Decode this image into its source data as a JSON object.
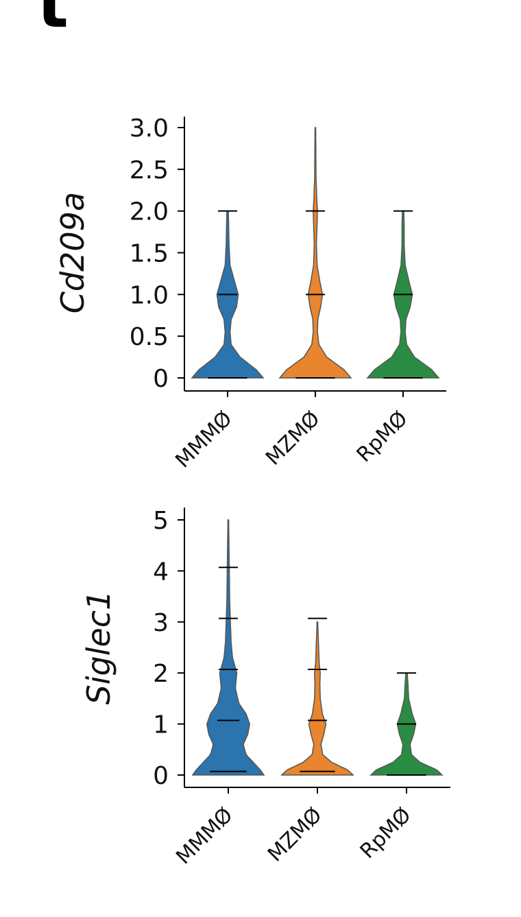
{
  "panel_letter": "t",
  "chart_data": [
    {
      "type": "violin",
      "ylabel": "Cd209a",
      "ylim": [
        0,
        3.0
      ],
      "yticks": [
        0,
        0.5,
        1.0,
        1.5,
        2.0,
        2.5,
        3.0
      ],
      "ytick_labels": [
        "0",
        "0.5",
        "1.0",
        "1.5",
        "2.0",
        "2.5",
        "3.0"
      ],
      "categories": [
        "MMMØ",
        "MZMØ",
        "RpMØ"
      ],
      "series": [
        {
          "name": "MMMØ",
          "color": "#2b74ad",
          "max": 2.0,
          "density": [
            [
              0,
              1.0
            ],
            [
              0.1,
              0.8
            ],
            [
              0.25,
              0.35
            ],
            [
              0.4,
              0.1
            ],
            [
              0.55,
              0.07
            ],
            [
              0.7,
              0.1
            ],
            [
              0.85,
              0.25
            ],
            [
              1.0,
              0.3
            ],
            [
              1.15,
              0.2
            ],
            [
              1.35,
              0.07
            ],
            [
              1.6,
              0.04
            ],
            [
              1.85,
              0.03
            ],
            [
              2.0,
              0.02
            ]
          ],
          "observed_levels": [
            0,
            1.0,
            2.0
          ]
        },
        {
          "name": "MZMØ",
          "color": "#e8852e",
          "max": 3.0,
          "density": [
            [
              0,
              1.0
            ],
            [
              0.1,
              0.8
            ],
            [
              0.25,
              0.32
            ],
            [
              0.4,
              0.1
            ],
            [
              0.55,
              0.06
            ],
            [
              0.7,
              0.07
            ],
            [
              0.85,
              0.15
            ],
            [
              1.0,
              0.2
            ],
            [
              1.15,
              0.13
            ],
            [
              1.35,
              0.05
            ],
            [
              1.6,
              0.03
            ],
            [
              1.85,
              0.05
            ],
            [
              2.0,
              0.06
            ],
            [
              2.15,
              0.04
            ],
            [
              2.4,
              0.02
            ],
            [
              3.0,
              0.01
            ]
          ],
          "observed_levels": [
            0,
            1.0,
            2.0
          ]
        },
        {
          "name": "RpMØ",
          "color": "#2a8c42",
          "max": 2.0,
          "density": [
            [
              0,
              1.0
            ],
            [
              0.1,
              0.8
            ],
            [
              0.25,
              0.32
            ],
            [
              0.4,
              0.1
            ],
            [
              0.55,
              0.06
            ],
            [
              0.7,
              0.08
            ],
            [
              0.85,
              0.2
            ],
            [
              1.0,
              0.26
            ],
            [
              1.15,
              0.17
            ],
            [
              1.35,
              0.06
            ],
            [
              1.6,
              0.03
            ],
            [
              1.85,
              0.03
            ],
            [
              2.0,
              0.02
            ]
          ],
          "observed_levels": [
            0,
            1.0,
            2.0
          ]
        }
      ]
    },
    {
      "type": "violin",
      "ylabel": "Siglec1",
      "ylim": [
        0,
        5
      ],
      "yticks": [
        0,
        1,
        2,
        3,
        4,
        5
      ],
      "ytick_labels": [
        "0",
        "1",
        "2",
        "3",
        "4",
        "5"
      ],
      "categories": [
        "MMMØ",
        "MZMØ",
        "RpMØ"
      ],
      "series": [
        {
          "name": "MMMØ",
          "color": "#2b74ad",
          "max": 5.0,
          "density": [
            [
              0,
              1.0
            ],
            [
              0.1,
              0.9
            ],
            [
              0.25,
              0.7
            ],
            [
              0.4,
              0.5
            ],
            [
              0.6,
              0.42
            ],
            [
              0.8,
              0.55
            ],
            [
              1.0,
              0.6
            ],
            [
              1.2,
              0.5
            ],
            [
              1.4,
              0.3
            ],
            [
              1.7,
              0.2
            ],
            [
              2.0,
              0.24
            ],
            [
              2.3,
              0.12
            ],
            [
              2.6,
              0.08
            ],
            [
              3.0,
              0.06
            ],
            [
              3.4,
              0.04
            ],
            [
              4.0,
              0.03
            ],
            [
              5.0,
              0.01
            ]
          ],
          "observed_levels": [
            0.07,
            1.07,
            2.07,
            3.07,
            4.07
          ]
        },
        {
          "name": "MZMØ",
          "color": "#e8852e",
          "max": 3.0,
          "density": [
            [
              0,
              1.0
            ],
            [
              0.1,
              0.85
            ],
            [
              0.25,
              0.4
            ],
            [
              0.4,
              0.15
            ],
            [
              0.6,
              0.1
            ],
            [
              0.8,
              0.18
            ],
            [
              1.0,
              0.24
            ],
            [
              1.2,
              0.14
            ],
            [
              1.5,
              0.08
            ],
            [
              1.8,
              0.07
            ],
            [
              2.0,
              0.08
            ],
            [
              2.2,
              0.05
            ],
            [
              2.6,
              0.03
            ],
            [
              3.0,
              0.01
            ]
          ],
          "observed_levels": [
            0.07,
            1.07,
            2.07,
            3.07
          ]
        },
        {
          "name": "RpMØ",
          "color": "#2a8c42",
          "max": 2.0,
          "density": [
            [
              0,
              1.0
            ],
            [
              0.1,
              0.85
            ],
            [
              0.25,
              0.38
            ],
            [
              0.4,
              0.14
            ],
            [
              0.6,
              0.1
            ],
            [
              0.8,
              0.2
            ],
            [
              1.0,
              0.26
            ],
            [
              1.2,
              0.16
            ],
            [
              1.5,
              0.06
            ],
            [
              1.8,
              0.04
            ],
            [
              2.0,
              0.02
            ]
          ],
          "observed_levels": [
            0,
            1.0,
            2.0
          ]
        }
      ]
    }
  ]
}
